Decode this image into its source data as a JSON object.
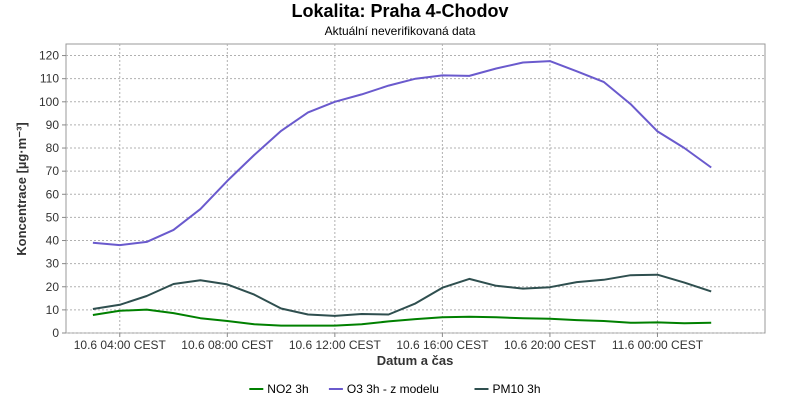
{
  "chart_data": {
    "type": "line",
    "title": "Lokalita: Praha 4-Chodov",
    "subtitle": "Aktuální neverifikovaná data",
    "xlabel": "Datum a čas",
    "ylabel": "Koncentrace [µg·m⁻³]",
    "ylim": [
      0,
      125
    ],
    "yticks": [
      0,
      10,
      20,
      30,
      40,
      50,
      60,
      70,
      80,
      90,
      100,
      110,
      120
    ],
    "xlim": [
      "10.6 02:00",
      "11.6 04:00"
    ],
    "xticks": [
      {
        "t": "10.6 04:00",
        "label": "10.6 04:00 CEST"
      },
      {
        "t": "10.6 08:00",
        "label": "10.6 08:00 CEST"
      },
      {
        "t": "10.6 12:00",
        "label": "10.6 12:00 CEST"
      },
      {
        "t": "10.6 16:00",
        "label": "10.6 16:00 CEST"
      },
      {
        "t": "10.6 20:00",
        "label": "10.6 20:00 CEST"
      },
      {
        "t": "11.6 00:00",
        "label": "11.6 00:00 CEST"
      }
    ],
    "grid": true,
    "legend_position": "bottom",
    "x": [
      "10.6 03:00",
      "10.6 04:00",
      "10.6 05:00",
      "10.6 06:00",
      "10.6 07:00",
      "10.6 08:00",
      "10.6 09:00",
      "10.6 10:00",
      "10.6 11:00",
      "10.6 12:00",
      "10.6 13:00",
      "10.6 14:00",
      "10.6 15:00",
      "10.6 16:00",
      "10.6 17:00",
      "10.6 18:00",
      "10.6 19:00",
      "10.6 20:00",
      "10.6 21:00",
      "10.6 22:00",
      "10.6 23:00",
      "11.6 00:00",
      "11.6 01:00",
      "11.6 02:00"
    ],
    "series": [
      {
        "name": "NO2 3h",
        "color": "#008000",
        "values": [
          7.8,
          9.6,
          10.1,
          8.6,
          6.4,
          5.2,
          3.8,
          3.2,
          3.2,
          3.2,
          3.8,
          5.0,
          6.0,
          6.8,
          7.0,
          6.8,
          6.4,
          6.2,
          5.6,
          5.2,
          4.4,
          4.6,
          4.2,
          4.4
        ]
      },
      {
        "name": "O3 3h - z modelu",
        "color": "#6a5acd",
        "values": [
          39.0,
          38.0,
          39.4,
          44.6,
          53.6,
          65.8,
          77.0,
          87.4,
          95.4,
          100.0,
          103.2,
          107.0,
          110.0,
          111.4,
          111.2,
          114.4,
          117.0,
          117.6,
          113.2,
          108.6,
          99.0,
          87.2,
          80.0,
          71.6
        ]
      },
      {
        "name": "PM10 3h",
        "color": "#2f4f4f",
        "values": [
          10.4,
          12.2,
          16.0,
          21.2,
          22.8,
          21.0,
          16.6,
          10.6,
          8.0,
          7.4,
          8.2,
          8.0,
          12.8,
          19.6,
          23.4,
          20.4,
          19.2,
          19.8,
          22.0,
          23.0,
          25.0,
          25.2,
          21.8,
          18.0
        ]
      }
    ]
  }
}
